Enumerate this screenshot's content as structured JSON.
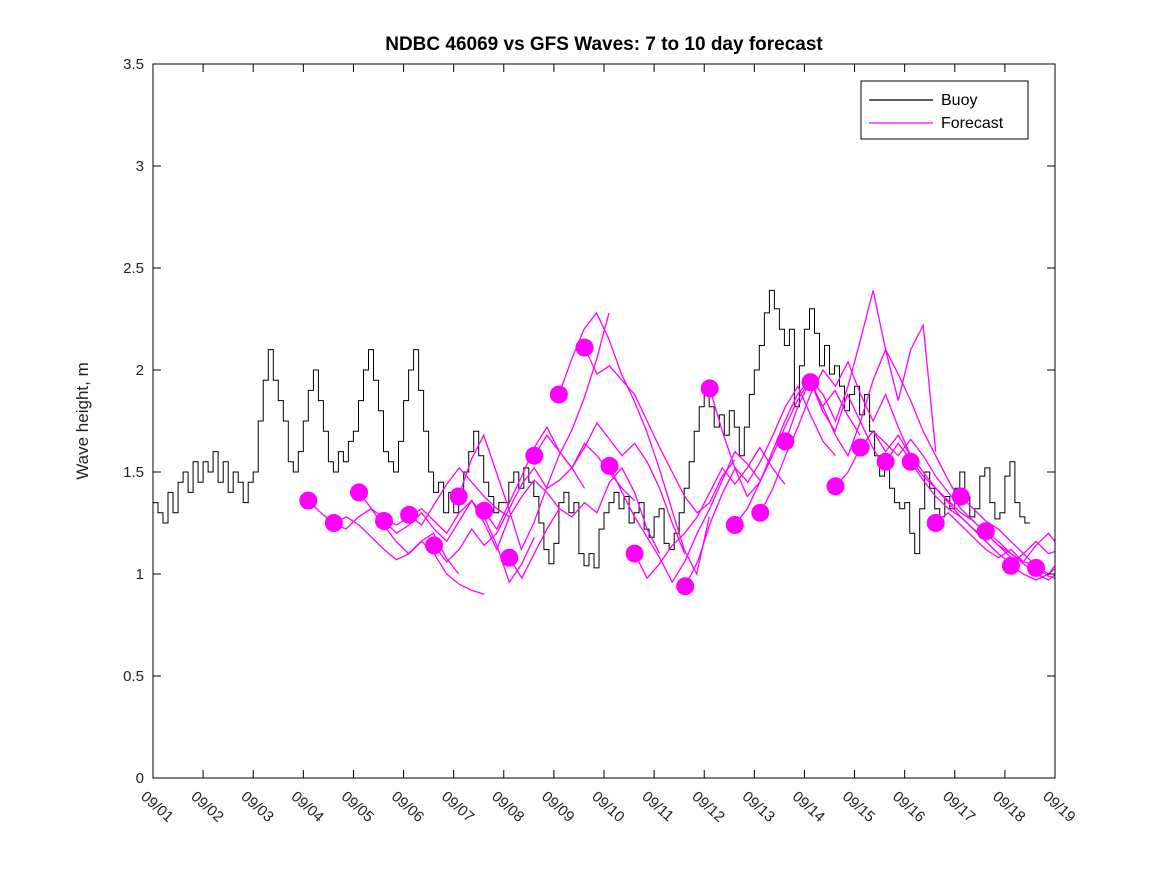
{
  "title": "NDBC 46069 vs GFS Waves: 7 to 10 day forecast",
  "legend": [
    {
      "label": "Buoy",
      "color": "#000000"
    },
    {
      "label": "Forecast",
      "color": "#FF00FF"
    }
  ],
  "axes": {
    "ylabel": "Wave height, m",
    "ylim": [
      0,
      3.5
    ],
    "yticks": [
      "0",
      "0.5",
      "1",
      "1.5",
      "2",
      "2.5",
      "3",
      "3.5"
    ],
    "ytick_values": [
      0,
      0.5,
      1,
      1.5,
      2,
      2.5,
      3,
      3.5
    ],
    "xlim_days": [
      1,
      19
    ],
    "xtick_days": [
      1,
      2,
      3,
      4,
      5,
      6,
      7,
      8,
      9,
      10,
      11,
      12,
      13,
      14,
      15,
      16,
      17,
      18,
      19
    ],
    "xtick_labels": [
      "09/01",
      "09/02",
      "09/03",
      "09/04",
      "09/05",
      "09/06",
      "09/07",
      "09/08",
      "09/09",
      "09/10",
      "09/11",
      "09/12",
      "09/13",
      "09/14",
      "09/15",
      "09/16",
      "09/17",
      "09/18",
      "09/19"
    ],
    "grid": false,
    "box": true,
    "legend_position": "top-right-inside"
  },
  "chart_data": {
    "type": "line",
    "x_unit": "day of September",
    "y_unit": "m",
    "series": [
      {
        "name": "Buoy",
        "color": "#000000",
        "style": "step",
        "line_width": 1,
        "start_day": 1.0,
        "step_days": 0.1,
        "values": [
          1.35,
          1.3,
          1.25,
          1.4,
          1.3,
          1.45,
          1.5,
          1.4,
          1.55,
          1.45,
          1.55,
          1.5,
          1.6,
          1.45,
          1.55,
          1.4,
          1.5,
          1.45,
          1.35,
          1.45,
          1.5,
          1.75,
          1.95,
          2.1,
          1.95,
          1.85,
          1.75,
          1.55,
          1.5,
          1.6,
          1.75,
          1.9,
          2.0,
          1.85,
          1.7,
          1.55,
          1.5,
          1.6,
          1.55,
          1.65,
          1.7,
          1.85,
          2.0,
          2.1,
          1.95,
          1.8,
          1.6,
          1.55,
          1.5,
          1.65,
          1.85,
          2.0,
          2.1,
          1.9,
          1.7,
          1.5,
          1.4,
          1.45,
          1.3,
          1.4,
          1.3,
          1.4,
          1.5,
          1.6,
          1.7,
          1.58,
          1.45,
          1.38,
          1.3,
          1.35,
          1.35,
          1.45,
          1.5,
          1.42,
          1.52,
          1.45,
          1.38,
          1.25,
          1.12,
          1.05,
          1.15,
          1.35,
          1.4,
          1.3,
          1.35,
          1.1,
          1.04,
          1.1,
          1.03,
          1.22,
          1.3,
          1.35,
          1.4,
          1.32,
          1.38,
          1.25,
          1.3,
          1.35,
          1.22,
          1.18,
          1.28,
          1.32,
          1.15,
          1.12,
          1.2,
          1.3,
          1.42,
          1.55,
          1.7,
          1.82,
          1.9,
          1.82,
          1.72,
          1.78,
          1.68,
          1.8,
          1.72,
          1.58,
          1.72,
          1.88,
          2.0,
          2.12,
          2.28,
          2.39,
          2.3,
          2.2,
          2.12,
          2.2,
          1.82,
          2.02,
          2.2,
          2.3,
          2.18,
          2.02,
          2.12,
          1.98,
          2.02,
          1.92,
          1.8,
          1.88,
          1.92,
          1.78,
          1.88,
          1.7,
          1.58,
          1.48,
          1.55,
          1.42,
          1.35,
          1.32,
          1.35,
          1.2,
          1.1,
          1.32,
          1.5,
          1.42,
          1.32,
          1.28,
          1.38,
          1.32,
          1.42,
          1.5,
          1.38,
          1.28,
          1.32,
          1.48,
          1.52,
          1.35,
          1.27,
          1.3,
          1.48,
          1.55,
          1.35,
          1.28,
          1.25,
          1.25
        ]
      }
    ],
    "forecast_runs_meta": {
      "name": "Forecast",
      "color": "#FF00FF",
      "style": "linear",
      "line_width": 1.3,
      "step_days": 0.25,
      "marker_on_first_point": true,
      "marker_radius": 9
    },
    "forecast_runs": [
      {
        "start_day": 4.1,
        "values": [
          1.36,
          1.3,
          1.25,
          1.22,
          1.28,
          1.32,
          1.24,
          1.16,
          1.1,
          1.16,
          1.2,
          1.08,
          1.0
        ]
      },
      {
        "start_day": 4.61,
        "values": [
          1.25,
          1.28,
          1.24,
          1.18,
          1.12,
          1.07,
          1.1,
          1.16,
          1.1,
          1.0,
          0.95,
          0.92,
          0.9
        ]
      },
      {
        "start_day": 5.11,
        "values": [
          1.4,
          1.32,
          1.27,
          1.24,
          1.28,
          1.32,
          1.26,
          1.2,
          1.3,
          1.36,
          1.25,
          1.12,
          1.28
        ]
      },
      {
        "start_day": 5.61,
        "values": [
          1.26,
          1.2,
          1.24,
          1.3,
          1.22,
          1.16,
          1.26,
          1.36,
          1.28,
          1.14,
          0.96,
          1.05,
          1.18
        ]
      },
      {
        "start_day": 6.11,
        "values": [
          1.29,
          1.24,
          1.34,
          1.44,
          1.52,
          1.45,
          1.38,
          1.32,
          1.28,
          1.38,
          1.46,
          1.4,
          1.32
        ]
      },
      {
        "start_day": 6.61,
        "values": [
          1.14,
          1.06,
          1.12,
          1.22,
          1.14,
          1.2,
          1.32,
          1.44,
          1.52,
          1.42,
          1.46,
          1.52,
          1.42
        ]
      },
      {
        "start_day": 7.1,
        "values": [
          1.38,
          1.56,
          1.68,
          1.5,
          1.32,
          1.12,
          1.25,
          1.42,
          1.58,
          1.7,
          1.86,
          2.05,
          2.28
        ]
      },
      {
        "start_day": 7.61,
        "values": [
          1.31,
          1.22,
          1.35,
          1.48,
          1.62,
          1.72,
          1.6,
          1.52,
          1.64,
          1.58,
          1.5,
          1.42,
          1.36
        ]
      },
      {
        "start_day": 8.11,
        "values": [
          1.08,
          0.98,
          1.1,
          1.22,
          1.32,
          1.28,
          1.35,
          1.3,
          1.45,
          1.52,
          1.4,
          1.22,
          1.1
        ]
      },
      {
        "start_day": 8.61,
        "values": [
          1.58,
          1.68,
          1.6,
          1.52,
          1.62,
          1.74,
          1.66,
          1.58,
          1.64,
          1.55,
          1.42,
          1.25,
          1.1
        ]
      },
      {
        "start_day": 9.1,
        "values": [
          1.88,
          2.05,
          2.2,
          2.28,
          2.15,
          1.98,
          1.85,
          1.7,
          1.52,
          1.32,
          1.12,
          1.0,
          1.28
        ]
      },
      {
        "start_day": 9.61,
        "values": [
          2.11,
          1.98,
          2.02,
          1.95,
          1.88,
          1.75,
          1.62,
          1.5,
          1.38,
          1.3,
          1.35,
          1.48,
          1.56
        ]
      },
      {
        "start_day": 10.11,
        "values": [
          1.53,
          1.4,
          1.28,
          1.18,
          1.08,
          0.96,
          1.06,
          1.2,
          1.32,
          1.46,
          1.6,
          1.54,
          1.46
        ]
      },
      {
        "start_day": 10.61,
        "values": [
          1.1,
          0.98,
          1.05,
          1.14,
          1.2,
          1.28,
          1.4,
          1.52,
          1.44,
          1.52,
          1.62,
          1.52,
          1.44
        ]
      },
      {
        "start_day": 11.62,
        "values": [
          0.94,
          1.06,
          1.25,
          1.4,
          1.52,
          1.45,
          1.55,
          1.68,
          1.82,
          1.92,
          1.78,
          1.65,
          1.58
        ]
      },
      {
        "start_day": 12.11,
        "values": [
          1.91,
          1.7,
          1.52,
          1.38,
          1.45,
          1.6,
          1.75,
          1.88,
          1.95,
          1.82,
          1.9,
          1.78,
          1.68
        ]
      },
      {
        "start_day": 12.61,
        "values": [
          1.24,
          1.32,
          1.45,
          1.58,
          1.72,
          1.85,
          1.95,
          1.8,
          1.7,
          1.88,
          1.75,
          1.62,
          1.52
        ]
      },
      {
        "start_day": 13.12,
        "values": [
          1.3,
          1.42,
          1.58,
          1.72,
          1.88,
          2.0,
          1.92,
          2.04,
          1.88,
          1.75,
          1.88,
          1.72,
          1.58
        ]
      },
      {
        "start_day": 13.62,
        "values": [
          1.65,
          1.82,
          1.95,
          1.88,
          1.75,
          1.92,
          2.15,
          2.39,
          2.1,
          1.85,
          2.1,
          2.22,
          1.6
        ]
      },
      {
        "start_day": 14.12,
        "values": [
          1.94,
          1.82,
          1.68,
          1.58,
          1.75,
          1.95,
          2.1,
          1.98,
          1.85,
          1.7,
          1.58,
          1.46,
          1.35
        ]
      },
      {
        "start_day": 14.62,
        "values": [
          1.43,
          1.5,
          1.62,
          1.7,
          1.6,
          1.68,
          1.58,
          1.5,
          1.42,
          1.35,
          1.28,
          1.22,
          1.18
        ]
      },
      {
        "start_day": 15.12,
        "values": [
          1.62,
          1.7,
          1.64,
          1.58,
          1.66,
          1.58,
          1.48,
          1.4,
          1.32,
          1.26,
          1.2,
          1.14,
          1.08
        ]
      },
      {
        "start_day": 15.62,
        "values": [
          1.55,
          1.64,
          1.56,
          1.48,
          1.42,
          1.36,
          1.3,
          1.26,
          1.2,
          1.14,
          1.1,
          1.06,
          1.04
        ]
      },
      {
        "start_day": 16.12,
        "values": [
          1.55,
          1.46,
          1.38,
          1.32,
          1.28,
          1.22,
          1.16,
          1.1,
          1.05,
          1.1,
          1.16,
          1.1,
          1.12
        ]
      },
      {
        "start_day": 16.62,
        "values": [
          1.25,
          1.3,
          1.24,
          1.18,
          1.12,
          1.08,
          1.12,
          1.06,
          1.14,
          1.2,
          1.12,
          1.08,
          1.05
        ]
      },
      {
        "start_day": 17.12,
        "values": [
          1.38,
          1.32,
          1.26,
          1.22,
          1.16,
          1.1,
          1.04,
          1.0,
          1.08,
          1.14,
          1.08,
          1.02,
          0.98
        ]
      },
      {
        "start_day": 17.62,
        "values": [
          1.21,
          1.16,
          1.1,
          1.05,
          1.0,
          0.97,
          1.02,
          1.06,
          1.0,
          0.98,
          0.97,
          0.96,
          0.95
        ]
      },
      {
        "start_day": 18.12,
        "values": [
          1.04,
          1.0,
          0.97,
          1.0,
          1.05,
          1.02,
          0.99,
          0.98,
          0.97,
          0.96,
          0.96,
          0.95,
          0.95
        ]
      },
      {
        "start_day": 18.62,
        "values": [
          1.03,
          0.99,
          0.97,
          0.96,
          0.95,
          0.95,
          0.94,
          0.94,
          0.93,
          0.93,
          0.92,
          0.92,
          0.92
        ]
      }
    ]
  }
}
